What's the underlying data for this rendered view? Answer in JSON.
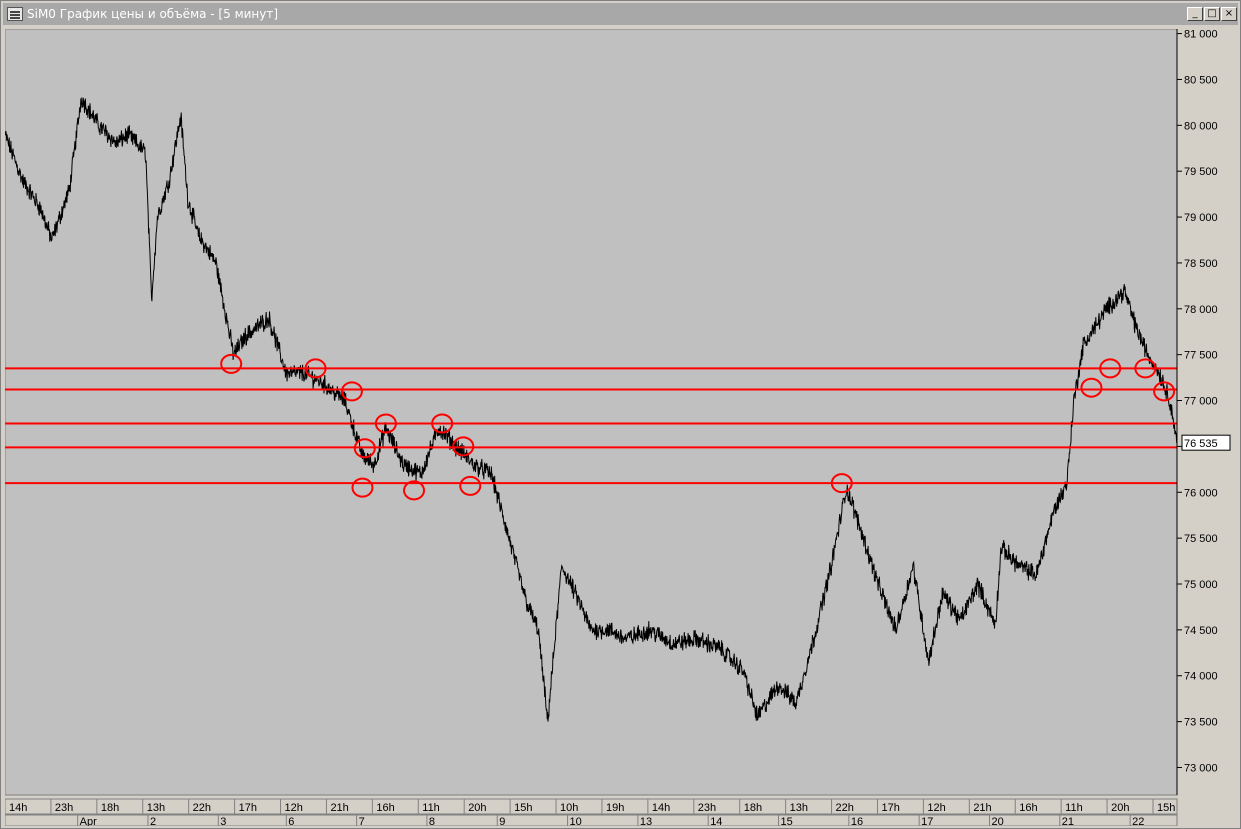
{
  "window": {
    "title": "SiM0 График цены и объёма - [5 минут]",
    "buttons": [
      "_",
      "□",
      "×"
    ]
  },
  "colors": {
    "plot_background": "#c0c0c0",
    "price_line": "#000000",
    "level_lines": "#ff0000",
    "title_bar": "#a8a8a8"
  },
  "chart_data": {
    "type": "line",
    "title": "",
    "xlabel": "",
    "ylabel": "",
    "ylim": [
      72700,
      81050
    ],
    "y_ticks": [
      81000,
      80500,
      80000,
      79500,
      79000,
      78500,
      78000,
      77500,
      77000,
      76500,
      76000,
      75500,
      75000,
      74500,
      74000,
      73500,
      73000
    ],
    "y_tick_labels": [
      "81 000",
      "80 500",
      "80 000",
      "79 500",
      "79 000",
      "78 500",
      "78 000",
      "77 500",
      "77 000",
      "76 500",
      "76 000",
      "75 500",
      "75 000",
      "74 500",
      "74 000",
      "73 500",
      "73 000"
    ],
    "last_price_label": "76 535",
    "last_price": 76535,
    "time_ticks": [
      "14h",
      "23h",
      "18h",
      "13h",
      "22h",
      "17h",
      "12h",
      "21h",
      "16h",
      "11h",
      "20h",
      "15h",
      "10h",
      "19h",
      "14h",
      "23h",
      "18h",
      "13h",
      "22h",
      "17h",
      "12h",
      "21h",
      "16h",
      "11h",
      "20h",
      "15h"
    ],
    "date_ticks": [
      "Apr",
      "2",
      "3",
      "6",
      "7",
      "8",
      "9",
      "10",
      "13",
      "14",
      "15",
      "16",
      "17",
      "20",
      "21",
      "22"
    ],
    "x_range": [
      0,
      100
    ],
    "series": [
      {
        "points": [
          [
            0,
            79900
          ],
          [
            1.5,
            79400
          ],
          [
            3,
            79100
          ],
          [
            4,
            78750
          ],
          [
            5.5,
            79300
          ],
          [
            6.5,
            80300
          ],
          [
            8,
            80000
          ],
          [
            9.5,
            79800
          ],
          [
            10.5,
            79900
          ],
          [
            12,
            79700
          ],
          [
            12.5,
            78100
          ],
          [
            13,
            79000
          ],
          [
            14,
            79400
          ],
          [
            15,
            80100
          ],
          [
            15.6,
            79200
          ],
          [
            16.5,
            78800
          ],
          [
            18,
            78500
          ],
          [
            19.5,
            77500
          ],
          [
            20.5,
            77700
          ],
          [
            22.5,
            77900
          ],
          [
            24,
            77300
          ],
          [
            25.5,
            77300
          ],
          [
            27,
            77200
          ],
          [
            29,
            77000
          ],
          [
            30.5,
            76400
          ],
          [
            31.5,
            76300
          ],
          [
            32.5,
            76700
          ],
          [
            34,
            76300
          ],
          [
            35.5,
            76200
          ],
          [
            37,
            76700
          ],
          [
            38.5,
            76500
          ],
          [
            40,
            76300
          ],
          [
            41.5,
            76200
          ],
          [
            43,
            75500
          ],
          [
            44.5,
            74800
          ],
          [
            45.5,
            74500
          ],
          [
            46.3,
            73500
          ],
          [
            47.5,
            75200
          ],
          [
            49,
            74800
          ],
          [
            50,
            74500
          ],
          [
            51.5,
            74500
          ],
          [
            53,
            74400
          ],
          [
            55,
            74500
          ],
          [
            57,
            74350
          ],
          [
            59,
            74400
          ],
          [
            61,
            74300
          ],
          [
            63,
            74050
          ],
          [
            64.2,
            73550
          ],
          [
            66,
            73900
          ],
          [
            67.5,
            73700
          ],
          [
            69,
            74400
          ],
          [
            70.5,
            75200
          ],
          [
            71.8,
            76050
          ],
          [
            73,
            75600
          ],
          [
            74.5,
            75000
          ],
          [
            76,
            74500
          ],
          [
            77.5,
            75200
          ],
          [
            78.8,
            74150
          ],
          [
            80,
            74900
          ],
          [
            81.5,
            74600
          ],
          [
            83,
            75000
          ],
          [
            84.5,
            74550
          ],
          [
            85,
            75400
          ],
          [
            86.5,
            75200
          ],
          [
            88,
            75100
          ],
          [
            89.5,
            75800
          ],
          [
            90.6,
            76100
          ],
          [
            91.2,
            77000
          ],
          [
            92,
            77600
          ],
          [
            93,
            77800
          ],
          [
            94,
            78000
          ],
          [
            95.5,
            78200
          ],
          [
            96.5,
            77800
          ],
          [
            97.5,
            77500
          ],
          [
            98.5,
            77300
          ],
          [
            99.4,
            77000
          ],
          [
            100,
            76535
          ]
        ]
      }
    ],
    "levels": [
      77350,
      77120,
      76750,
      76490,
      76100
    ],
    "annotations": [
      {
        "type": "circle",
        "x": 19.3,
        "y": 77400
      },
      {
        "type": "circle",
        "x": 26.5,
        "y": 77350
      },
      {
        "type": "circle",
        "x": 29.6,
        "y": 77100
      },
      {
        "type": "circle",
        "x": 30.7,
        "y": 76480
      },
      {
        "type": "circle",
        "x": 30.5,
        "y": 76050
      },
      {
        "type": "circle",
        "x": 32.5,
        "y": 76750
      },
      {
        "type": "circle",
        "x": 34.9,
        "y": 76020
      },
      {
        "type": "circle",
        "x": 37.3,
        "y": 76750
      },
      {
        "type": "circle",
        "x": 39.1,
        "y": 76500
      },
      {
        "type": "circle",
        "x": 39.7,
        "y": 76070
      },
      {
        "type": "circle",
        "x": 71.4,
        "y": 76100
      },
      {
        "type": "circle",
        "x": 92.7,
        "y": 77140
      },
      {
        "type": "circle",
        "x": 94.3,
        "y": 77350
      },
      {
        "type": "circle",
        "x": 97.3,
        "y": 77350
      },
      {
        "type": "circle",
        "x": 98.9,
        "y": 77100
      }
    ],
    "grid": false,
    "legend": "none"
  }
}
